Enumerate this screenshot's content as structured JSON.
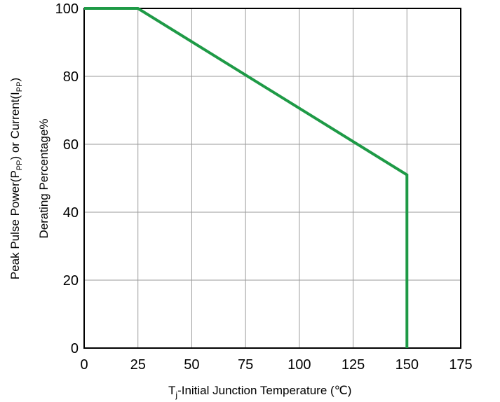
{
  "chart_data": {
    "type": "line",
    "x": [
      0,
      25,
      150,
      150
    ],
    "series": [
      {
        "values": [
          100,
          100,
          51,
          0
        ],
        "color": "#1e9a46"
      }
    ],
    "xlabel": "Tj-Initial Junction Temperature (℃)",
    "xlabel_parts": {
      "base": "T",
      "sub": "j",
      "rest": "-Initial Junction Temperature (℃)"
    },
    "ylabel_lines": [
      "Peak Pulse Power(PPP) or Current(IPP)",
      "Derating Percentage%"
    ],
    "ylabel_line1_parts": {
      "pre": "Peak Pulse Power(P",
      "sub1": "PP",
      "mid": ") or Current(I",
      "sub2": "PP",
      "post": ")"
    },
    "xlim": [
      0,
      175
    ],
    "ylim": [
      0,
      100
    ],
    "xticks": [
      0,
      25,
      50,
      75,
      100,
      125,
      150,
      175
    ],
    "xtick_labels": [
      "0",
      "25",
      "50",
      "75",
      "100",
      "125",
      "150",
      "175"
    ],
    "yticks": [
      0,
      20,
      40,
      60,
      80,
      100
    ],
    "ytick_labels": [
      "0",
      "20",
      "40",
      "60",
      "80",
      "100"
    ],
    "grid": true
  }
}
